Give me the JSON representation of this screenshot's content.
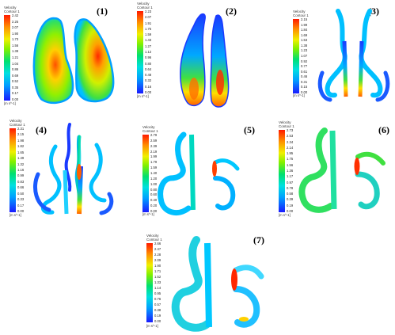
{
  "legend_title": "Velocity",
  "legend_subtitle": "Contour 1",
  "unit": "[m s^-1]",
  "colors": {
    "background": "#ffffff",
    "scale": [
      "#1a1aff",
      "#00c8ff",
      "#00e0a0",
      "#40e040",
      "#c8f000",
      "#ffe000",
      "#ff9000",
      "#ff2000"
    ]
  },
  "panels": [
    {
      "id": "1",
      "label": "(1)",
      "ticks": [
        "2.42",
        "2.25",
        "2.07",
        "1.90",
        "1.73",
        "1.56",
        "1.38",
        "1.21",
        "1.04",
        "0.86",
        "0.69",
        "0.52",
        "0.35",
        "0.17",
        "0.00"
      ]
    },
    {
      "id": "2",
      "label": "(2)",
      "ticks": [
        "2.23",
        "2.07",
        "1.91",
        "1.75",
        "1.59",
        "1.43",
        "1.27",
        "1.12",
        "0.96",
        "0.80",
        "0.64",
        "0.48",
        "0.32",
        "0.16",
        "0.00"
      ]
    },
    {
      "id": "3",
      "label": "(3)",
      "ticks": [
        "2.15",
        "1.99",
        "1.84",
        "1.69",
        "1.53",
        "1.38",
        "1.23",
        "1.07",
        "0.92",
        "0.77",
        "0.61",
        "0.46",
        "0.31",
        "0.15",
        "0.00"
      ]
    },
    {
      "id": "4",
      "label": "(4)",
      "ticks": [
        "2.31",
        "2.15",
        "1.98",
        "1.82",
        "1.65",
        "1.49",
        "1.32",
        "1.16",
        "0.99",
        "0.83",
        "0.66",
        "0.50",
        "0.33",
        "0.17",
        "0.00"
      ]
    },
    {
      "id": "5",
      "label": "(5)",
      "ticks": [
        "2.79",
        "2.59",
        "2.39",
        "2.19",
        "1.99",
        "1.79",
        "1.59",
        "1.40",
        "1.20",
        "1.00",
        "0.80",
        "0.60",
        "0.40",
        "0.20",
        "0.00"
      ]
    },
    {
      "id": "6",
      "label": "(6)",
      "ticks": [
        "2.73",
        "2.53",
        "2.34",
        "2.14",
        "1.95",
        "1.75",
        "1.56",
        "1.36",
        "1.17",
        "0.97",
        "0.78",
        "0.58",
        "0.39",
        "0.19",
        "0.00"
      ]
    },
    {
      "id": "7",
      "label": "(7)",
      "ticks": [
        "2.66",
        "2.47",
        "2.28",
        "2.09",
        "1.90",
        "1.71",
        "1.52",
        "1.33",
        "1.14",
        "0.95",
        "0.76",
        "0.57",
        "0.38",
        "0.19",
        "0.00"
      ]
    }
  ]
}
